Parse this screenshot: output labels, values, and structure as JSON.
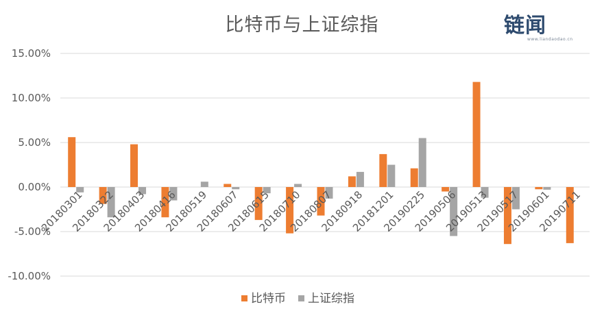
{
  "chart_data": {
    "type": "bar",
    "title": "比特币与上证综指",
    "categories": [
      "20180301",
      "20180322",
      "20180403",
      "20180416",
      "20180519",
      "20180607",
      "20180615",
      "20180710",
      "20180807",
      "20180918",
      "20181201",
      "20190225",
      "20190506",
      "20190513",
      "20190517",
      "20190601",
      "20190711"
    ],
    "series": [
      {
        "name": "比特币",
        "color": "#ED7D31",
        "values": [
          5.6,
          -1.9,
          4.8,
          -3.4,
          0.0,
          0.35,
          -3.7,
          -5.2,
          -3.2,
          1.2,
          3.7,
          2.1,
          -0.5,
          11.8,
          -6.4,
          -0.25,
          -6.3
        ]
      },
      {
        "name": "上证综指",
        "color": "#A5A5A5",
        "values": [
          -0.6,
          -3.4,
          -0.8,
          -1.5,
          0.6,
          -0.25,
          -0.7,
          0.35,
          -1.3,
          1.7,
          2.5,
          5.5,
          -5.5,
          -1.2,
          -2.5,
          -0.3,
          0.0
        ]
      }
    ],
    "yticks": [
      "15.00%",
      "10.00%",
      "5.00%",
      "0.00%",
      "-5.00%",
      "-10.00%"
    ],
    "ytick_values": [
      15,
      10,
      5,
      0,
      -5,
      -10
    ],
    "ylim": [
      -10,
      15
    ],
    "xlabel": "",
    "ylabel": "",
    "grid": true,
    "legend_position": "bottom"
  },
  "watermark": {
    "text": "链闻",
    "sub": "www.liandaodao.cn"
  }
}
